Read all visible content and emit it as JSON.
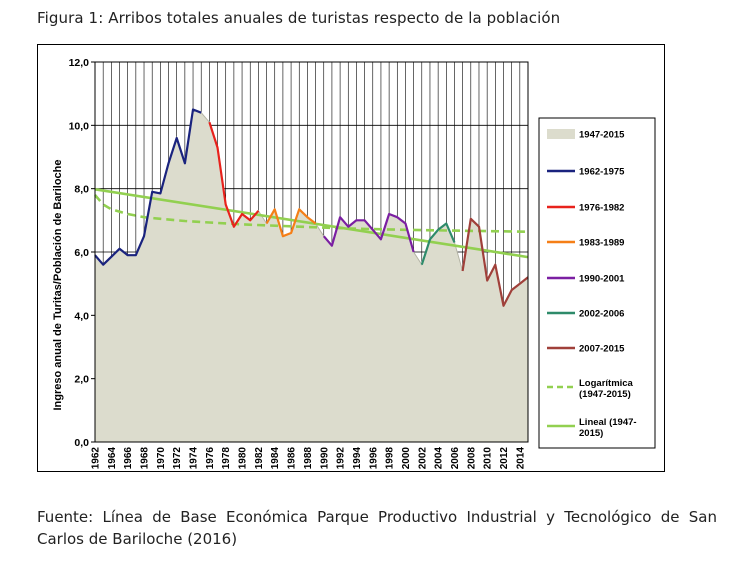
{
  "figure_title": "Figura 1: Arribos totales anuales de turistas respecto de la población",
  "source_text": "Fuente: Línea de Base Económica Parque Productivo Industrial y Tecnológico de San Carlos de Bariloche (2016)",
  "chart_data": {
    "type": "area",
    "title": "",
    "xlabel": "",
    "ylabel": "Ingreso anual de Turitas/Población de Bariloche",
    "ylim": [
      0,
      12
    ],
    "xlim": [
      1962,
      2015
    ],
    "yticks": [
      "0,0",
      "2,0",
      "4,0",
      "6,0",
      "8,0",
      "10,0",
      "12,0"
    ],
    "xticks": [
      "1962",
      "1964",
      "1966",
      "1968",
      "1970",
      "1972",
      "1974",
      "1976",
      "1978",
      "1980",
      "1982",
      "1984",
      "1986",
      "1988",
      "1990",
      "1992",
      "1994",
      "1996",
      "1998",
      "2000",
      "2002",
      "2004",
      "2006",
      "2008",
      "2010",
      "2012",
      "2014"
    ],
    "grid": true,
    "legend_position": "right",
    "colors": {
      "area_fill": "#dcdccd",
      "area_line": "#b4b4a5",
      "s1962": "#1a237e",
      "s1976": "#e8221c",
      "s1983": "#f57f17",
      "s1990": "#7b1fa2",
      "s2002": "#2e8b6a",
      "s2007": "#a0403a",
      "trend": "#92d050"
    },
    "area": {
      "name": "1947-2015",
      "x": [
        1962,
        1963,
        1964,
        1965,
        1966,
        1967,
        1968,
        1969,
        1970,
        1971,
        1972,
        1973,
        1974,
        1975,
        1976,
        1977,
        1978,
        1979,
        1980,
        1981,
        1982,
        1983,
        1984,
        1985,
        1986,
        1987,
        1988,
        1989,
        1990,
        1991,
        1992,
        1993,
        1994,
        1995,
        1996,
        1997,
        1998,
        1999,
        2000,
        2001,
        2002,
        2003,
        2004,
        2005,
        2006,
        2007,
        2008,
        2009,
        2010,
        2011,
        2012,
        2013,
        2014,
        2015
      ],
      "values": [
        5.9,
        5.6,
        5.85,
        6.1,
        5.9,
        5.9,
        6.5,
        7.9,
        7.85,
        8.8,
        9.6,
        8.8,
        10.5,
        10.4,
        10.1,
        9.3,
        7.5,
        6.8,
        7.2,
        7.0,
        7.3,
        6.9,
        7.35,
        6.5,
        6.6,
        7.35,
        7.1,
        6.9,
        6.5,
        6.2,
        7.1,
        6.8,
        7.0,
        7.0,
        6.7,
        6.4,
        7.2,
        7.1,
        6.9,
        6.0,
        5.6,
        6.4,
        6.7,
        6.9,
        6.3,
        5.4,
        7.05,
        6.8,
        5.1,
        5.6,
        4.3,
        4.8,
        5.0,
        5.2
      ]
    },
    "series": [
      {
        "name": "1962-1975",
        "x": [
          1962,
          1963,
          1964,
          1965,
          1966,
          1967,
          1968,
          1969,
          1970,
          1971,
          1972,
          1973,
          1974,
          1975
        ],
        "values": [
          5.9,
          5.6,
          5.85,
          6.1,
          5.9,
          5.9,
          6.5,
          7.9,
          7.85,
          8.8,
          9.6,
          8.8,
          10.5,
          10.4
        ]
      },
      {
        "name": "1976-1982",
        "x": [
          1976,
          1977,
          1978,
          1979,
          1980,
          1981,
          1982
        ],
        "values": [
          10.1,
          9.3,
          7.5,
          6.8,
          7.2,
          7.0,
          7.3
        ]
      },
      {
        "name": "1983-1989",
        "x": [
          1983,
          1984,
          1985,
          1986,
          1987,
          1988,
          1989
        ],
        "values": [
          6.9,
          7.35,
          6.5,
          6.6,
          7.35,
          7.1,
          6.9
        ]
      },
      {
        "name": "1990-2001",
        "x": [
          1990,
          1991,
          1992,
          1993,
          1994,
          1995,
          1996,
          1997,
          1998,
          1999,
          2000,
          2001
        ],
        "values": [
          6.5,
          6.2,
          7.1,
          6.8,
          7.0,
          7.0,
          6.7,
          6.4,
          7.2,
          7.1,
          6.9,
          6.0
        ]
      },
      {
        "name": "2002-2006",
        "x": [
          2002,
          2003,
          2004,
          2005,
          2006
        ],
        "values": [
          5.6,
          6.4,
          6.7,
          6.9,
          6.3
        ]
      },
      {
        "name": "2007-2015",
        "x": [
          2007,
          2008,
          2009,
          2010,
          2011,
          2012,
          2013,
          2014,
          2015
        ],
        "values": [
          5.4,
          7.05,
          6.8,
          5.1,
          5.6,
          4.3,
          4.8,
          5.0,
          5.2
        ]
      }
    ],
    "trend_log": {
      "name": "Logarítmica (1947-2015)",
      "x": [
        1962,
        1963,
        1964,
        1966,
        1968,
        1970,
        1973,
        1976,
        1980,
        1985,
        1990,
        1995,
        2000,
        2005,
        2010,
        2015
      ],
      "values": [
        7.8,
        7.5,
        7.35,
        7.2,
        7.1,
        7.05,
        6.98,
        6.93,
        6.87,
        6.82,
        6.77,
        6.73,
        6.7,
        6.68,
        6.66,
        6.64
      ]
    },
    "trend_lin": {
      "name": "Lineal (1947-2015)",
      "x": [
        1962,
        2015
      ],
      "values": [
        7.98,
        5.84
      ]
    },
    "legend": [
      {
        "key": "area",
        "label": "1947-2015"
      },
      {
        "key": "s1962",
        "label": "1962-1975"
      },
      {
        "key": "s1976",
        "label": "1976-1982"
      },
      {
        "key": "s1983",
        "label": "1983-1989"
      },
      {
        "key": "s1990",
        "label": "1990-2001"
      },
      {
        "key": "s2002",
        "label": "2002-2006"
      },
      {
        "key": "s2007",
        "label": "2007-2015"
      },
      {
        "key": "log",
        "label": "Logarítmica",
        "label2": "(1947-2015)"
      },
      {
        "key": "lin",
        "label": "Lineal (1947-",
        "label2": "2015)"
      }
    ]
  }
}
